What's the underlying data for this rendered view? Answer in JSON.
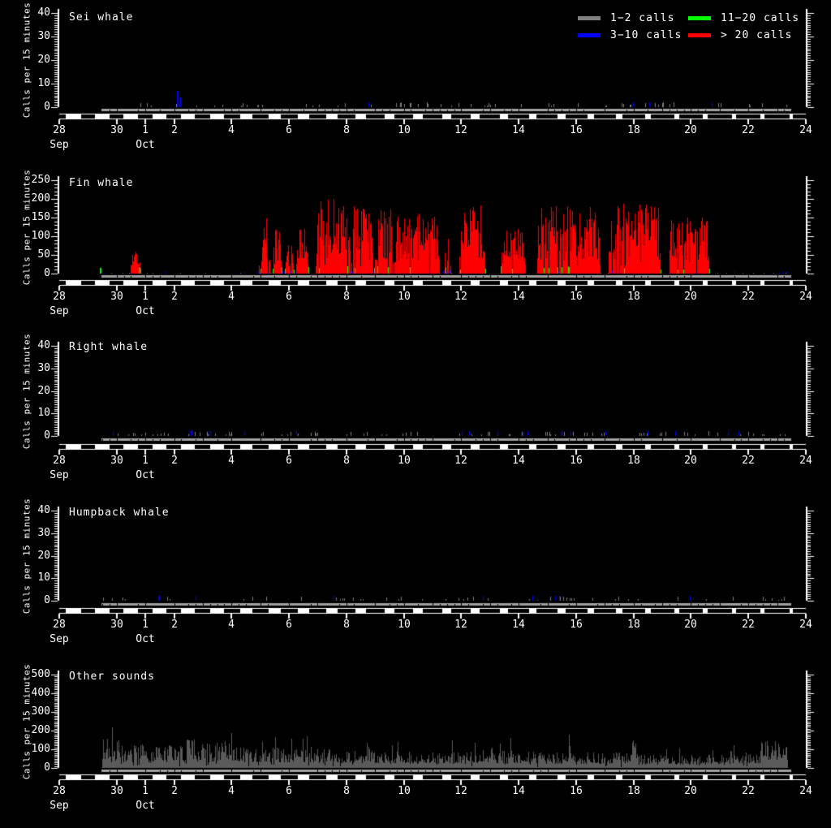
{
  "seed": 42,
  "colors": {
    "background": "#000000",
    "foreground": "#ffffff",
    "effort_band": "#a0a0a0",
    "other_sounds_bars": "#5a5a5a",
    "day_strip": "#ffffff",
    "night_strip": "#000000",
    "call_rate_gray": "#808080",
    "call_rate_blue": "#0000ff",
    "call_rate_green": "#00ff00",
    "call_rate_red": "#ff0000"
  },
  "legend": {
    "items": [
      {
        "label": "1−2 calls",
        "color": "#808080",
        "range_min": 1,
        "range_max": 2
      },
      {
        "label": "3−10 calls",
        "color": "#0000ff",
        "range_min": 3,
        "range_max": 10
      },
      {
        "label": "11−20 calls",
        "color": "#00ff00",
        "range_min": 11,
        "range_max": 20
      },
      {
        "label": "> 20 calls",
        "color": "#ff0000",
        "range_min": 21,
        "range_max": null
      }
    ]
  },
  "chart_data": {
    "type": "bar",
    "description": "Whale call detection rates per 15-minute bin, 28 Sep to 24 Oct; bar color encodes calls per bin; gray band under each panel = recording effort; white/black strip = day/night",
    "x_axis": {
      "start_label": "28 Sep",
      "end_label": "24 Oct",
      "days_total": 26,
      "xticks": [
        {
          "day": 0,
          "label": "28",
          "month": "Sep"
        },
        {
          "day": 2,
          "label": "30"
        },
        {
          "day": 3,
          "label": "1",
          "month": "Oct"
        },
        {
          "day": 4,
          "label": "2"
        },
        {
          "day": 6,
          "label": "4"
        },
        {
          "day": 8,
          "label": "6"
        },
        {
          "day": 10,
          "label": "8"
        },
        {
          "day": 12,
          "label": "10"
        },
        {
          "day": 14,
          "label": "12"
        },
        {
          "day": 16,
          "label": "14"
        },
        {
          "day": 18,
          "label": "16"
        },
        {
          "day": 20,
          "label": "18"
        },
        {
          "day": 22,
          "label": "20"
        },
        {
          "day": 24,
          "label": "22"
        },
        {
          "day": 26,
          "label": "24"
        }
      ]
    },
    "effort_bar": {
      "start_day": 1.48,
      "end_day": 25.5
    },
    "night_centered_on_integer_days": true,
    "panels": [
      {
        "name": "sei",
        "title": "Sei whale",
        "ylabel": "Calls per 15 minutes",
        "ymax": 40,
        "yticks": [
          0,
          10,
          20,
          30,
          40
        ],
        "yminor": 1,
        "segments": [
          {
            "type": "specks",
            "x0": 1.48,
            "x1": 25.4,
            "peak": 1.6,
            "p": 0.08
          }
        ],
        "events": [
          {
            "x": 4.12,
            "h": 7
          },
          {
            "x": 4.22,
            "h": 4
          }
        ]
      },
      {
        "name": "fin",
        "title": "Fin whale",
        "ylabel": "Calls per 15 minutes",
        "ymax": 250,
        "yticks": [
          0,
          50,
          100,
          150,
          200,
          250
        ],
        "yminor": 10,
        "segments": [
          {
            "type": "specks",
            "x0": 1.55,
            "x1": 6.9,
            "peak": 3.2,
            "p": 0.1
          },
          {
            "type": "burst",
            "x0": 2.45,
            "x1": 2.85,
            "peak": 65
          },
          {
            "type": "burst",
            "x0": 6.92,
            "x1": 7.35,
            "peak": 150
          },
          {
            "type": "burst",
            "x0": 7.4,
            "x1": 7.78,
            "peak": 118
          },
          {
            "type": "burst",
            "x0": 7.82,
            "x1": 8.18,
            "peak": 92
          },
          {
            "type": "burst",
            "x0": 8.22,
            "x1": 8.72,
            "peak": 122
          },
          {
            "type": "burst",
            "x0": 8.92,
            "x1": 10.15,
            "peak": 205
          },
          {
            "type": "burst",
            "x0": 10.15,
            "x1": 10.95,
            "peak": 182
          },
          {
            "type": "burst",
            "x0": 10.95,
            "x1": 11.65,
            "peak": 172
          },
          {
            "type": "burst",
            "x0": 11.65,
            "x1": 13.25,
            "peak": 168
          },
          {
            "type": "burst",
            "x0": 13.35,
            "x1": 13.65,
            "peak": 95
          },
          {
            "type": "burst",
            "x0": 13.9,
            "x1": 14.85,
            "peak": 185
          },
          {
            "type": "burst",
            "x0": 15.35,
            "x1": 16.25,
            "peak": 122
          },
          {
            "type": "burst",
            "x0": 16.6,
            "x1": 18.85,
            "peak": 182
          },
          {
            "type": "burst",
            "x0": 19.1,
            "x1": 20.95,
            "peak": 190
          },
          {
            "type": "burst",
            "x0": 21.2,
            "x1": 22.65,
            "peak": 155
          },
          {
            "type": "specks",
            "x0": 22.7,
            "x1": 25.4,
            "peak": 4.0,
            "p": 0.13
          }
        ],
        "events": [
          {
            "x": 1.45,
            "h": 16
          }
        ]
      },
      {
        "name": "right",
        "title": "Right whale",
        "ylabel": "Calls per 15 minutes",
        "ymax": 40,
        "yticks": [
          0,
          10,
          20,
          30,
          40
        ],
        "yminor": 1,
        "segments": [
          {
            "type": "specks",
            "x0": 1.48,
            "x1": 25.4,
            "peak": 1.9,
            "p": 0.12
          }
        ],
        "events": [
          {
            "x": 4.6,
            "h": 2.6
          }
        ]
      },
      {
        "name": "humpback",
        "title": "Humpback whale",
        "ylabel": "Calls per 15 minutes",
        "ymax": 40,
        "yticks": [
          0,
          10,
          20,
          30,
          40
        ],
        "yminor": 1,
        "segments": [
          {
            "type": "specks",
            "x0": 1.48,
            "x1": 25.4,
            "peak": 1.7,
            "p": 0.09
          }
        ],
        "events": []
      },
      {
        "name": "other",
        "title": "Other sounds",
        "ylabel": "Calls per 15 minutes",
        "ymax": 500,
        "yticks": [
          0,
          100,
          200,
          300,
          400,
          500
        ],
        "yminor": 10,
        "mono": true,
        "segments": [
          {
            "type": "noise",
            "x0": 1.48,
            "x1": 2.2,
            "peak": 270
          },
          {
            "type": "noise",
            "x0": 2.2,
            "x1": 4.4,
            "peak": 210
          },
          {
            "type": "noise",
            "x0": 4.4,
            "x1": 4.7,
            "peak": 255
          },
          {
            "type": "noise",
            "x0": 4.7,
            "x1": 6.3,
            "peak": 240
          },
          {
            "type": "noise",
            "x0": 6.3,
            "x1": 9.0,
            "peak": 190
          },
          {
            "type": "noise",
            "x0": 9.0,
            "x1": 10.6,
            "peak": 170
          },
          {
            "type": "noise",
            "x0": 10.6,
            "x1": 10.9,
            "peak": 235
          },
          {
            "type": "noise",
            "x0": 10.9,
            "x1": 14.5,
            "peak": 150
          },
          {
            "type": "noise",
            "x0": 14.5,
            "x1": 16.2,
            "peak": 180
          },
          {
            "type": "noise",
            "x0": 16.2,
            "x1": 17.7,
            "peak": 150
          },
          {
            "type": "noise",
            "x0": 17.7,
            "x1": 17.85,
            "peak": 300
          },
          {
            "type": "noise",
            "x0": 17.85,
            "x1": 19.95,
            "peak": 140
          },
          {
            "type": "noise",
            "x0": 19.95,
            "x1": 20.15,
            "peak": 250
          },
          {
            "type": "noise",
            "x0": 20.15,
            "x1": 23.3,
            "peak": 120
          },
          {
            "type": "noise",
            "x0": 23.3,
            "x1": 24.4,
            "peak": 160
          },
          {
            "type": "noise",
            "x0": 24.4,
            "x1": 25.35,
            "peak": 270
          }
        ],
        "events": []
      }
    ]
  }
}
